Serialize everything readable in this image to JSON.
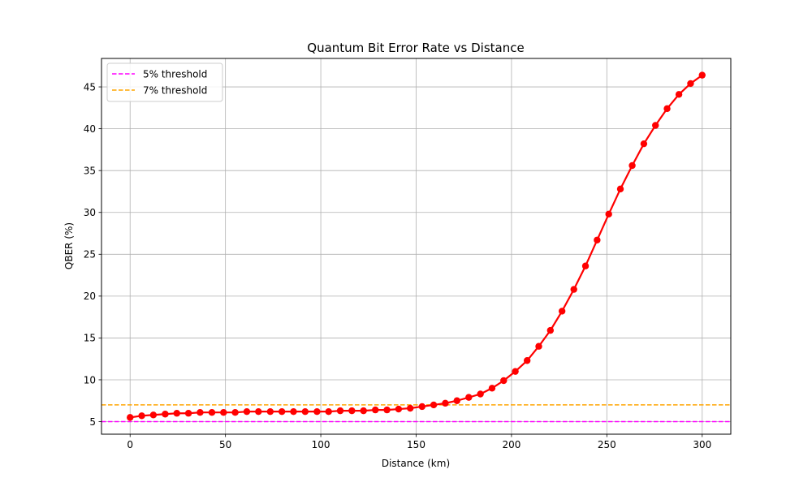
{
  "chart_data": {
    "type": "line",
    "title": "Quantum Bit Error Rate vs Distance",
    "xlabel": "Distance (km)",
    "ylabel": "QBER (%)",
    "xlim": [
      -15,
      315
    ],
    "ylim": [
      3.5,
      48.4
    ],
    "x_ticks": [
      0,
      50,
      100,
      150,
      200,
      250,
      300
    ],
    "y_ticks": [
      5,
      10,
      15,
      20,
      25,
      30,
      35,
      40,
      45
    ],
    "grid": true,
    "legend_placement": "top-left",
    "series": [
      {
        "color": "#ff0000",
        "marker": "circle",
        "x": [
          0,
          6.1,
          12.2,
          18.4,
          24.5,
          30.6,
          36.7,
          42.9,
          49.0,
          55.1,
          61.2,
          67.3,
          73.5,
          79.6,
          85.7,
          91.8,
          98.0,
          104.1,
          110.2,
          116.3,
          122.4,
          128.6,
          134.7,
          140.8,
          146.9,
          153.1,
          159.2,
          165.3,
          171.4,
          177.6,
          183.7,
          189.8,
          195.9,
          202.0,
          208.2,
          214.3,
          220.4,
          226.5,
          232.7,
          238.8,
          244.9,
          251.0,
          257.1,
          263.3,
          269.4,
          275.5,
          281.6,
          287.8,
          293.9,
          300.0
        ],
        "y": [
          5.5,
          5.7,
          5.8,
          5.9,
          6.0,
          6.0,
          6.1,
          6.1,
          6.1,
          6.1,
          6.2,
          6.2,
          6.2,
          6.2,
          6.2,
          6.2,
          6.2,
          6.2,
          6.3,
          6.3,
          6.3,
          6.4,
          6.4,
          6.5,
          6.6,
          6.8,
          7.0,
          7.2,
          7.5,
          7.9,
          8.3,
          9.0,
          9.9,
          11.0,
          12.3,
          14.0,
          15.9,
          18.2,
          20.8,
          23.6,
          26.7,
          29.8,
          32.8,
          35.6,
          38.2,
          40.4,
          42.4,
          44.1,
          45.4,
          46.4
        ]
      }
    ],
    "thresholds": [
      {
        "name": "5% threshold",
        "value": 5,
        "color": "#ff00ff"
      },
      {
        "name": "7% threshold",
        "value": 7,
        "color": "#ffa500"
      }
    ]
  }
}
